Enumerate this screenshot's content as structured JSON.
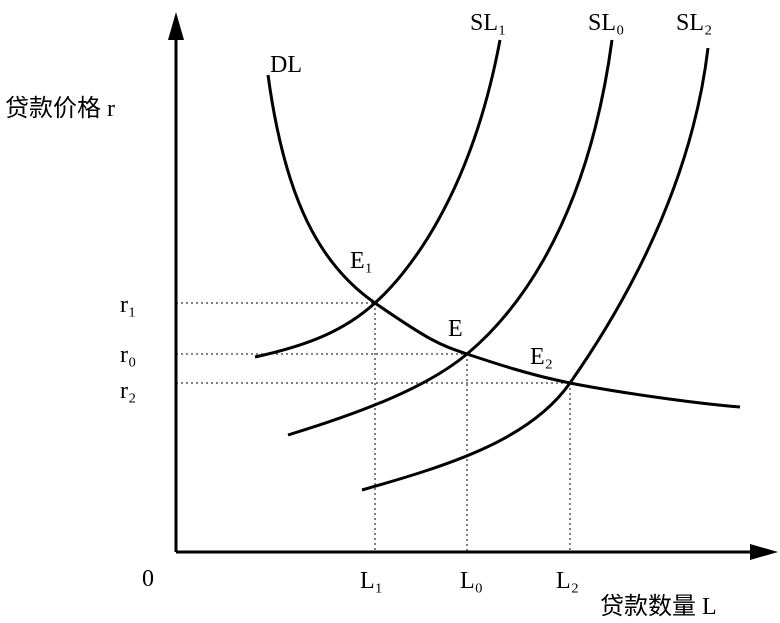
{
  "axes": {
    "y_label": "贷款价格 r",
    "x_label": "贷款数量 L",
    "origin": "0"
  },
  "curves": {
    "demand": "DL",
    "supply": [
      "SL₁",
      "SL₀",
      "SL₂"
    ]
  },
  "points": [
    "E₁",
    "E",
    "E₂"
  ],
  "y_ticks": [
    "r₁",
    "r₀",
    "r₂"
  ],
  "x_ticks": [
    "L₁",
    "L₀",
    "L₂"
  ]
}
